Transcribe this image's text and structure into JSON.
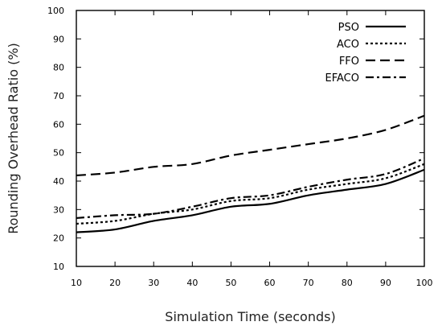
{
  "chart_data": {
    "type": "line",
    "title": "",
    "xlabel": "Simulation Time (seconds)",
    "ylabel": "Rounding Overhead Ratio (%)",
    "xlim": [
      10,
      100
    ],
    "ylim": [
      10,
      100
    ],
    "x": [
      10,
      20,
      30,
      40,
      50,
      60,
      70,
      80,
      90,
      100
    ],
    "x_ticks": [
      "10",
      "20",
      "30",
      "40",
      "50",
      "60",
      "70",
      "80",
      "90",
      "100"
    ],
    "y_ticks": [
      "10",
      "20",
      "30",
      "40",
      "50",
      "60",
      "70",
      "80",
      "90",
      "100"
    ],
    "grid": false,
    "legend_position": "top-right",
    "series": [
      {
        "name": "PSO",
        "style": "solid",
        "values": [
          22,
          23,
          26,
          28,
          31,
          32,
          35,
          37,
          39,
          44
        ]
      },
      {
        "name": "ACO",
        "style": "dotted",
        "values": [
          25,
          26,
          28.5,
          30,
          33,
          34,
          37,
          39,
          41,
          46
        ]
      },
      {
        "name": "FFO",
        "style": "dashed",
        "values": [
          42,
          43,
          45,
          46,
          49,
          51,
          53,
          55,
          58,
          63
        ]
      },
      {
        "name": "EFACO",
        "style": "dash-dot",
        "values": [
          27,
          28,
          28.5,
          31,
          34,
          35,
          38,
          40.5,
          42.5,
          48
        ]
      }
    ]
  }
}
